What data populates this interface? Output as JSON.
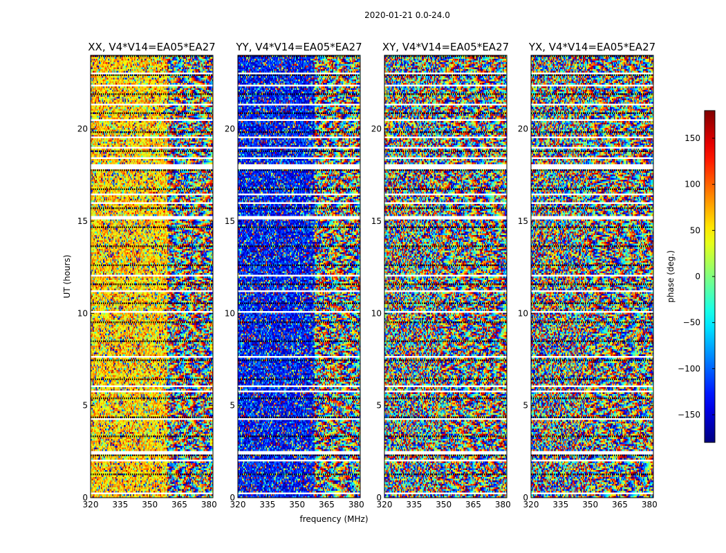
{
  "figure": {
    "suptitle": "2020-01-21 0.0-24.0"
  },
  "chart_data": {
    "type": "heatmap",
    "title": "2020-01-21 0.0-24.0",
    "xlabel": "frequency (MHz)",
    "ylabel": "UT (hours)",
    "xlim": [
      320,
      382
    ],
    "ylim": [
      0,
      24
    ],
    "xticks": [
      "320",
      "335",
      "350",
      "365",
      "380"
    ],
    "xtick_values": [
      320,
      335,
      350,
      365,
      380
    ],
    "yticks": [
      "0",
      "5",
      "10",
      "15",
      "20"
    ],
    "ytick_values": [
      0,
      5,
      10,
      15,
      20
    ],
    "panels": [
      {
        "title": "XX, V4*V14=EA05*EA27",
        "polarization": "XX",
        "mean_phase_deg": 60
      },
      {
        "title": "YY, V4*V14=EA05*EA27",
        "polarization": "YY",
        "mean_phase_deg": -130
      },
      {
        "title": "XY, V4*V14=EA05*EA27",
        "polarization": "XY",
        "mean_phase_deg": null
      },
      {
        "title": "YX, V4*V14=EA05*EA27",
        "polarization": "YX",
        "mean_phase_deg": null
      }
    ],
    "data_gaps_ut_hours": [
      [
        0.2,
        0.28
      ],
      [
        1.95,
        2.05
      ],
      [
        2.3,
        2.42
      ],
      [
        2.45,
        2.55
      ],
      [
        4.25,
        4.35
      ],
      [
        5.75,
        5.82
      ],
      [
        6.0,
        6.08
      ],
      [
        7.58,
        7.65
      ],
      [
        8.3,
        8.37
      ],
      [
        10.07,
        10.14
      ],
      [
        11.2,
        11.28
      ],
      [
        12.0,
        12.06
      ],
      [
        14.6,
        14.67
      ],
      [
        15.05,
        15.3
      ],
      [
        15.92,
        16.0
      ],
      [
        16.45,
        16.52
      ],
      [
        17.85,
        18.05
      ],
      [
        18.4,
        18.46
      ],
      [
        18.95,
        19.02
      ],
      [
        19.48,
        19.55
      ],
      [
        20.43,
        20.5
      ],
      [
        21.32,
        21.4
      ],
      [
        22.35,
        22.42
      ],
      [
        23.0,
        23.1
      ],
      [
        23.3,
        23.38
      ]
    ],
    "colorbar": {
      "label": "phase (deg.)",
      "range": [
        -180,
        180
      ],
      "ticks": [
        "150",
        "100",
        "50",
        "0",
        "−50",
        "−100",
        "−150"
      ],
      "tick_values": [
        150,
        100,
        50,
        0,
        -50,
        -100,
        -150
      ],
      "colormap": "jet"
    }
  }
}
